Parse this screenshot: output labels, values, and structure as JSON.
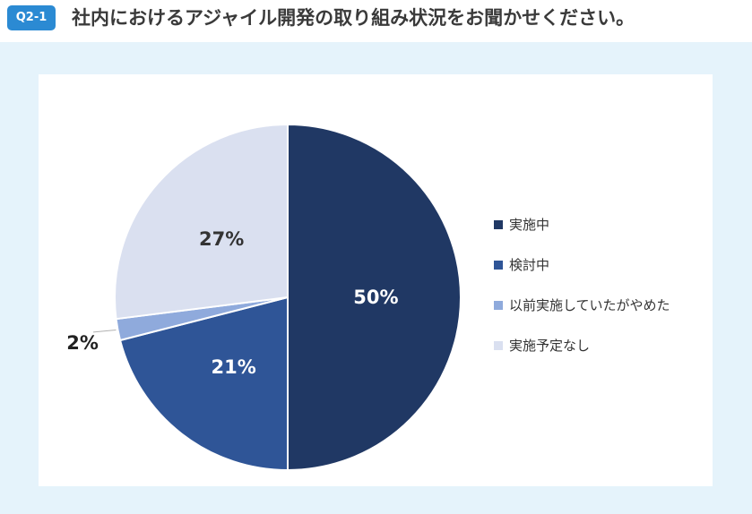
{
  "header": {
    "badge": "Q2-1",
    "title": "社内におけるアジャイル開発の取り組み状況をお聞かせください。"
  },
  "colors": {
    "badge": "#2b8ad3",
    "background": "#e5f3fb"
  },
  "chart_data": {
    "type": "pie",
    "title": "",
    "categories": [
      "実施中",
      "検討中",
      "以前実施していたがやめた",
      "実施予定なし"
    ],
    "values": [
      50,
      21,
      2,
      27
    ],
    "labels": [
      "50%",
      "21%",
      "2%",
      "27%"
    ],
    "unit": "%",
    "colors": [
      "#203864",
      "#2f5597",
      "#8faadc",
      "#dae0f0"
    ],
    "label_colors": [
      "#ffffff",
      "#ffffff",
      "#222222",
      "#333333"
    ],
    "start": "12 o'clock",
    "direction": "clockwise",
    "legend_position": "right"
  }
}
